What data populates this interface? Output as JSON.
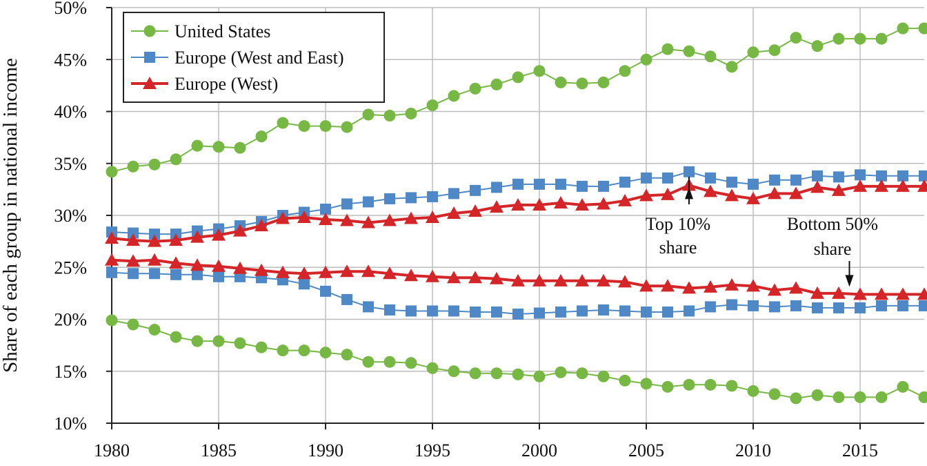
{
  "chart_data": {
    "type": "line",
    "title": "",
    "xlabel": "",
    "ylabel": "Share of each group in national income",
    "xlim": [
      1980,
      2018
    ],
    "ylim": [
      10,
      50
    ],
    "x_ticks": [
      1980,
      1985,
      1990,
      1995,
      2000,
      2005,
      2010,
      2015
    ],
    "x_tick_labels": [
      "1980",
      "1985",
      "1990",
      "1995",
      "2000",
      "2005",
      "2010",
      "2015"
    ],
    "y_ticks": [
      10,
      15,
      20,
      25,
      30,
      35,
      40,
      45,
      50
    ],
    "y_tick_labels": [
      "10%",
      "15%",
      "20%",
      "25%",
      "30%",
      "35%",
      "40%",
      "45%",
      "50%"
    ],
    "grid": true,
    "legend_position": "top-left",
    "x": [
      1980,
      1981,
      1982,
      1983,
      1984,
      1985,
      1986,
      1987,
      1988,
      1989,
      1990,
      1991,
      1992,
      1993,
      1994,
      1995,
      1996,
      1997,
      1998,
      1999,
      2000,
      2001,
      2002,
      2003,
      2004,
      2005,
      2006,
      2007,
      2008,
      2009,
      2010,
      2011,
      2012,
      2013,
      2014,
      2015,
      2016,
      2017,
      2018
    ],
    "series": [
      {
        "name": "United States",
        "group": "Top 10%",
        "marker": "circle",
        "color": "#77b743",
        "values": [
          34.2,
          34.7,
          34.9,
          35.4,
          36.7,
          36.6,
          36.5,
          37.6,
          38.9,
          38.6,
          38.6,
          38.5,
          39.7,
          39.6,
          39.8,
          40.6,
          41.5,
          42.2,
          42.6,
          43.3,
          43.9,
          42.8,
          42.7,
          42.8,
          43.9,
          45.0,
          46.0,
          45.8,
          45.3,
          44.3,
          45.7,
          45.9,
          47.1,
          46.3,
          47.0,
          47.0,
          47.0,
          48.0,
          48.0
        ]
      },
      {
        "name": "Europe (West and East)",
        "group": "Top 10%",
        "marker": "square",
        "color": "#4f88c6",
        "values": [
          28.4,
          28.3,
          28.2,
          28.2,
          28.5,
          28.7,
          29.0,
          29.4,
          30.0,
          30.3,
          30.6,
          31.1,
          31.3,
          31.6,
          31.7,
          31.8,
          32.1,
          32.4,
          32.7,
          33.0,
          33.0,
          33.0,
          32.8,
          32.8,
          33.2,
          33.6,
          33.6,
          34.2,
          33.6,
          33.2,
          33.0,
          33.4,
          33.4,
          33.8,
          33.7,
          33.9,
          33.8,
          33.8,
          33.8
        ]
      },
      {
        "name": "Europe (West)",
        "group": "Top 10%",
        "marker": "triangle",
        "color": "#d42628",
        "values": [
          27.8,
          27.6,
          27.5,
          27.6,
          27.9,
          28.1,
          28.5,
          29.0,
          29.7,
          29.8,
          29.6,
          29.5,
          29.3,
          29.5,
          29.7,
          29.8,
          30.2,
          30.4,
          30.8,
          31.0,
          31.0,
          31.2,
          31.0,
          31.1,
          31.4,
          31.9,
          32.0,
          32.9,
          32.3,
          31.9,
          31.6,
          32.1,
          32.1,
          32.7,
          32.4,
          32.8,
          32.8,
          32.8,
          32.8
        ]
      },
      {
        "name": "United States",
        "group": "Bottom 50%",
        "marker": "circle",
        "color": "#77b743",
        "values": [
          19.9,
          19.5,
          19.0,
          18.3,
          17.9,
          17.9,
          17.7,
          17.3,
          17.0,
          17.0,
          16.8,
          16.6,
          15.9,
          15.9,
          15.8,
          15.3,
          15.0,
          14.8,
          14.8,
          14.7,
          14.5,
          14.9,
          14.8,
          14.5,
          14.1,
          13.8,
          13.5,
          13.7,
          13.7,
          13.6,
          13.1,
          12.8,
          12.4,
          12.7,
          12.5,
          12.5,
          12.5,
          13.5,
          12.5
        ]
      },
      {
        "name": "Europe (West and East)",
        "group": "Bottom 50%",
        "marker": "square",
        "color": "#4f88c6",
        "values": [
          24.5,
          24.4,
          24.4,
          24.3,
          24.3,
          24.1,
          24.1,
          24.0,
          23.8,
          23.4,
          22.7,
          21.9,
          21.2,
          20.9,
          20.8,
          20.8,
          20.8,
          20.7,
          20.7,
          20.5,
          20.6,
          20.7,
          20.8,
          20.9,
          20.8,
          20.7,
          20.7,
          20.8,
          21.2,
          21.4,
          21.3,
          21.2,
          21.3,
          21.1,
          21.1,
          21.1,
          21.3,
          21.3,
          21.3
        ]
      },
      {
        "name": "Europe (West)",
        "group": "Bottom 50%",
        "marker": "triangle",
        "color": "#d42628",
        "values": [
          25.7,
          25.6,
          25.7,
          25.4,
          25.2,
          25.1,
          24.9,
          24.7,
          24.5,
          24.4,
          24.5,
          24.6,
          24.6,
          24.4,
          24.2,
          24.1,
          24.0,
          24.0,
          23.9,
          23.7,
          23.7,
          23.7,
          23.7,
          23.7,
          23.6,
          23.2,
          23.2,
          23.0,
          23.1,
          23.3,
          23.2,
          22.8,
          23.0,
          22.5,
          22.5,
          22.4,
          22.4,
          22.4,
          22.4
        ]
      }
    ],
    "legend": [
      {
        "label": "United States",
        "marker": "circle",
        "color": "#77b743"
      },
      {
        "label": "Europe (West and East)",
        "marker": "square",
        "color": "#4f88c6"
      },
      {
        "label": "Europe (West)",
        "marker": "triangle",
        "color": "#d42628"
      }
    ],
    "annotations": [
      {
        "lines": [
          "Top 10%",
          "share"
        ],
        "points_to_year": 2007,
        "points_to_value": 32.9
      },
      {
        "lines": [
          "Bottom 50%",
          "share"
        ],
        "points_to_year": 2014.5,
        "points_to_value": 23.0
      }
    ]
  }
}
